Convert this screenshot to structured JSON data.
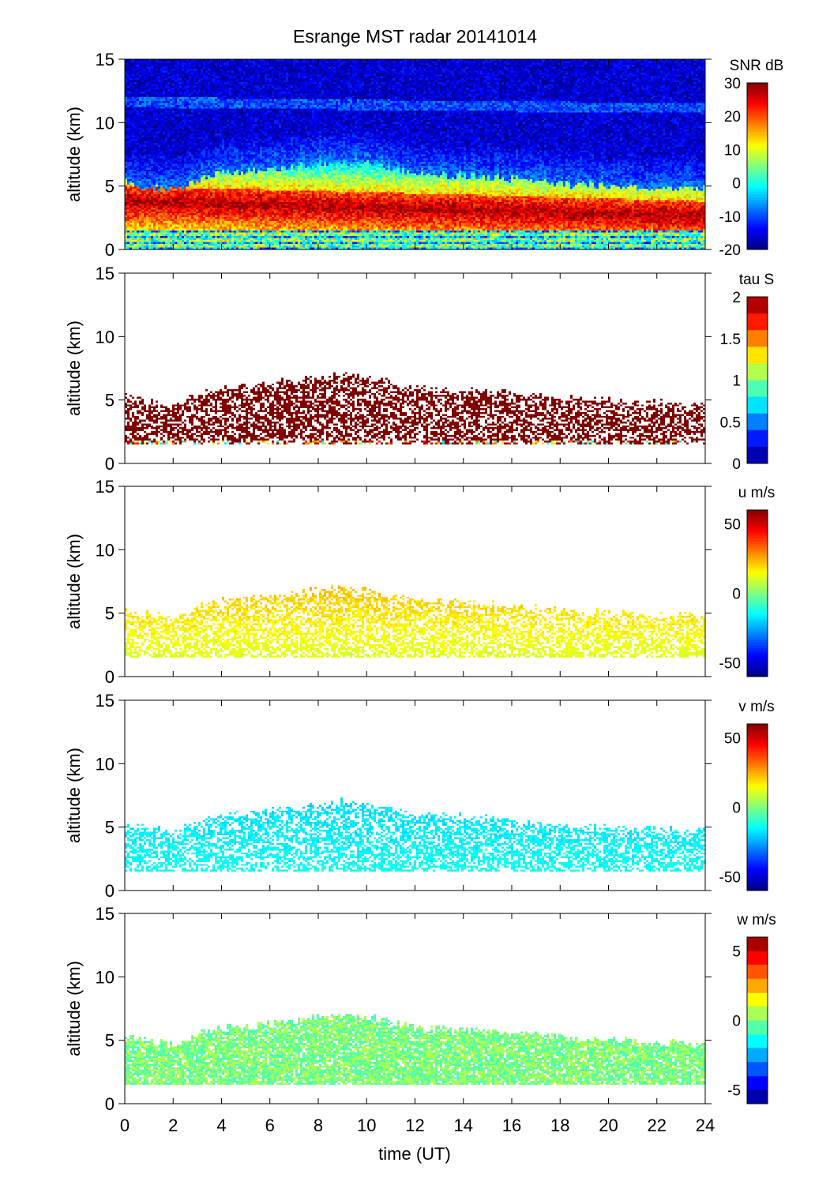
{
  "chart_data": {
    "type": "heatmap",
    "title": "Esrange MST radar 20141014",
    "xlabel": "time (UT)",
    "ylabel": "altitude (km)",
    "xlim": [
      0,
      24
    ],
    "ylim": [
      0,
      15
    ],
    "x_ticks": [
      "0",
      "2",
      "4",
      "6",
      "8",
      "10",
      "12",
      "14",
      "16",
      "18",
      "20",
      "22",
      "24"
    ],
    "y_ticks": [
      "0",
      "5",
      "10",
      "15"
    ],
    "data_coverage": {
      "bottom_km": 1.5,
      "top_time_h": [
        0,
        2,
        3,
        4,
        6,
        8,
        9,
        10,
        12,
        14,
        16,
        18,
        20,
        22,
        24
      ],
      "top_km": [
        5.2,
        4.6,
        5.5,
        6.0,
        6.3,
        6.8,
        7.0,
        6.8,
        6.0,
        5.8,
        5.6,
        5.2,
        5.0,
        4.8,
        4.8
      ]
    },
    "panels": [
      {
        "name": "SNR",
        "colorbar_label": "SNR dB",
        "clim": [
          -20,
          30
        ],
        "cticks": [
          "30",
          "20",
          "10",
          "0",
          "-10",
          "-20"
        ],
        "ctick_values": [
          30,
          20,
          10,
          0,
          -10,
          -20
        ],
        "levels": 64,
        "typical_value": 25,
        "background_value": -15
      },
      {
        "name": "tau",
        "colorbar_label": "tau S",
        "clim": [
          0,
          2
        ],
        "cticks": [
          "2",
          "1.5",
          "1",
          "0.5",
          "0"
        ],
        "ctick_values": [
          2,
          1.5,
          1,
          0.5,
          0
        ],
        "levels": 10,
        "typical_value": 2.5
      },
      {
        "name": "u",
        "colorbar_label": "u m/s",
        "clim": [
          -60,
          60
        ],
        "cticks": [
          "50",
          "0",
          "-50"
        ],
        "ctick_values": [
          50,
          0,
          -50
        ],
        "levels": 64,
        "typical_value": 12
      },
      {
        "name": "v",
        "colorbar_label": "v m/s",
        "clim": [
          -60,
          60
        ],
        "cticks": [
          "50",
          "0",
          "-50"
        ],
        "ctick_values": [
          50,
          0,
          -50
        ],
        "levels": 64,
        "typical_value": -15
      },
      {
        "name": "w",
        "colorbar_label": "w m/s",
        "clim": [
          -6,
          6
        ],
        "cticks": [
          "5",
          "0",
          "-5"
        ],
        "ctick_values": [
          5,
          0,
          -5
        ],
        "levels": 12,
        "typical_value": 0
      }
    ]
  }
}
